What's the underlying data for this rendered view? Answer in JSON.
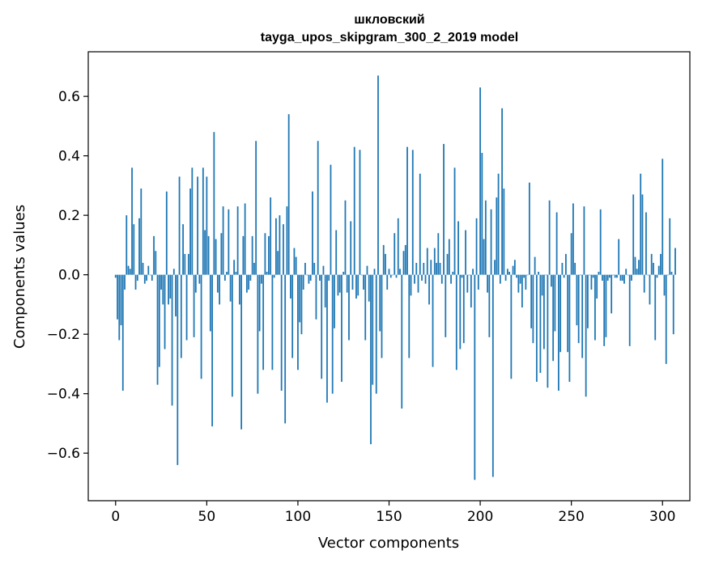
{
  "chart_data": {
    "type": "bar",
    "title_line1": "шкловский",
    "title_line2": "tayga_upos_skipgram_300_2_2019 model",
    "xlabel": "Vector components",
    "ylabel": "Components values",
    "xlim": [
      -15,
      315
    ],
    "ylim": [
      -0.76,
      0.75
    ],
    "xticks": [
      0,
      50,
      100,
      150,
      200,
      250,
      300
    ],
    "xtick_labels": [
      "0",
      "50",
      "100",
      "150",
      "200",
      "250",
      "300"
    ],
    "yticks": [
      -0.6,
      -0.4,
      -0.2,
      0.0,
      0.2,
      0.4,
      0.6
    ],
    "ytick_labels": [
      "−0.6",
      "−0.4",
      "−0.2",
      "0.0",
      "0.2",
      "0.4",
      "0.6"
    ],
    "color": "#1f77b4",
    "values": [
      -0.01,
      -0.15,
      -0.22,
      -0.17,
      -0.39,
      -0.05,
      0.2,
      0.03,
      0.02,
      0.36,
      0.17,
      -0.05,
      -0.02,
      0.19,
      0.29,
      0.04,
      -0.03,
      -0.02,
      0.03,
      0.0,
      -0.02,
      0.13,
      0.08,
      -0.37,
      -0.31,
      -0.05,
      -0.1,
      -0.25,
      0.28,
      -0.1,
      -0.08,
      -0.44,
      0.02,
      -0.14,
      -0.64,
      0.33,
      -0.28,
      0.17,
      0.07,
      -0.22,
      0.07,
      0.29,
      0.36,
      -0.21,
      -0.06,
      0.33,
      -0.03,
      -0.35,
      0.36,
      0.15,
      0.33,
      0.13,
      -0.19,
      -0.51,
      0.48,
      0.12,
      -0.06,
      -0.1,
      0.14,
      0.23,
      -0.02,
      0.01,
      0.22,
      -0.09,
      -0.41,
      0.05,
      0.01,
      0.23,
      -0.1,
      -0.52,
      0.13,
      0.24,
      -0.06,
      -0.05,
      -0.02,
      0.13,
      0.04,
      0.45,
      -0.4,
      -0.19,
      -0.03,
      -0.32,
      0.14,
      0.01,
      0.13,
      0.26,
      -0.32,
      -0.01,
      0.19,
      0.08,
      0.2,
      -0.39,
      0.17,
      -0.5,
      0.23,
      0.54,
      -0.08,
      -0.28,
      0.09,
      0.06,
      -0.32,
      -0.16,
      -0.2,
      -0.05,
      0.04,
      0.0,
      -0.03,
      -0.02,
      0.28,
      0.04,
      -0.15,
      0.45,
      -0.02,
      -0.35,
      0.03,
      -0.11,
      -0.43,
      -0.02,
      0.37,
      -0.4,
      -0.18,
      0.15,
      -0.07,
      -0.06,
      -0.36,
      0.01,
      0.25,
      -0.06,
      -0.22,
      0.18,
      -0.05,
      0.43,
      -0.08,
      -0.07,
      0.42,
      0.0,
      -0.05,
      -0.22,
      0.03,
      -0.09,
      -0.57,
      -0.37,
      0.02,
      -0.4,
      0.67,
      -0.19,
      -0.28,
      0.1,
      0.07,
      -0.05,
      0.02,
      -0.01,
      0.0,
      0.14,
      -0.01,
      0.19,
      0.02,
      -0.45,
      0.08,
      0.1,
      0.43,
      -0.28,
      -0.07,
      0.42,
      -0.03,
      0.04,
      -0.06,
      0.34,
      -0.02,
      0.04,
      -0.03,
      0.09,
      -0.1,
      0.05,
      -0.31,
      0.09,
      0.04,
      0.14,
      0.04,
      -0.03,
      0.44,
      -0.21,
      0.07,
      0.12,
      -0.03,
      0.01,
      0.36,
      -0.32,
      0.18,
      -0.25,
      -0.01,
      -0.23,
      0.15,
      -0.06,
      0.0,
      -0.11,
      0.02,
      -0.69,
      0.19,
      -0.05,
      0.63,
      0.41,
      0.12,
      0.25,
      -0.06,
      -0.21,
      0.22,
      -0.68,
      0.05,
      0.26,
      0.34,
      -0.03,
      0.56,
      0.29,
      -0.02,
      0.02,
      0.01,
      -0.35,
      0.03,
      0.05,
      -0.01,
      -0.06,
      -0.03,
      -0.11,
      -0.01,
      -0.05,
      0.0,
      0.31,
      -0.18,
      -0.23,
      0.06,
      -0.36,
      0.01,
      -0.33,
      -0.07,
      -0.25,
      0.0,
      -0.38,
      0.25,
      -0.04,
      -0.29,
      -0.19,
      0.21,
      -0.39,
      -0.26,
      0.04,
      -0.01,
      0.07,
      -0.26,
      -0.36,
      0.14,
      0.24,
      0.04,
      -0.17,
      -0.23,
      0.0,
      -0.28,
      0.23,
      -0.41,
      -0.18,
      0.0,
      -0.05,
      -0.01,
      -0.22,
      -0.08,
      0.01,
      0.22,
      -0.02,
      -0.24,
      -0.21,
      -0.02,
      -0.01,
      -0.13,
      0.0,
      -0.01,
      -0.01,
      0.12,
      -0.02,
      -0.02,
      -0.03,
      0.02,
      0.0,
      -0.24,
      -0.02,
      0.27,
      0.06,
      0.02,
      0.05,
      0.34,
      0.27,
      -0.06,
      0.21,
      0.0,
      -0.1,
      0.07,
      0.04,
      -0.22,
      -0.01,
      0.03,
      0.07,
      0.39,
      -0.07,
      -0.3,
      0.0,
      0.19,
      0.01,
      -0.2,
      0.09
    ]
  }
}
